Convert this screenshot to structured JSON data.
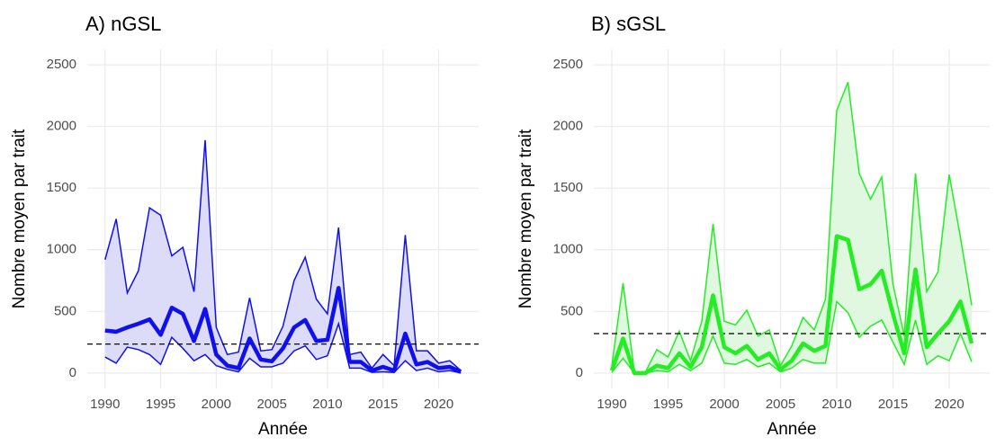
{
  "chart_data": [
    {
      "type": "line",
      "title": "A) nGSL",
      "x_label": "Année",
      "y_label": "Nombre moyen par trait",
      "x": [
        1990,
        1991,
        1992,
        1993,
        1994,
        1995,
        1996,
        1997,
        1998,
        1999,
        2000,
        2001,
        2002,
        2003,
        2004,
        2005,
        2006,
        2007,
        2008,
        2009,
        2010,
        2011,
        2012,
        2013,
        2014,
        2015,
        2016,
        2017,
        2018,
        2019,
        2020,
        2021,
        2022
      ],
      "values": [
        345,
        335,
        370,
        400,
        435,
        310,
        530,
        480,
        260,
        520,
        150,
        60,
        40,
        280,
        110,
        95,
        200,
        370,
        430,
        260,
        270,
        690,
        90,
        90,
        20,
        50,
        20,
        320,
        70,
        90,
        40,
        50,
        10
      ],
      "upper": [
        920,
        1250,
        650,
        830,
        1340,
        1280,
        950,
        1020,
        660,
        1890,
        370,
        150,
        170,
        610,
        180,
        190,
        380,
        750,
        940,
        600,
        480,
        1180,
        150,
        170,
        40,
        150,
        60,
        1120,
        180,
        180,
        80,
        100,
        20
      ],
      "lower": [
        130,
        80,
        210,
        190,
        150,
        70,
        290,
        200,
        100,
        150,
        60,
        30,
        10,
        120,
        50,
        50,
        80,
        180,
        220,
        110,
        140,
        400,
        40,
        40,
        5,
        10,
        5,
        100,
        20,
        40,
        10,
        20,
        0
      ],
      "hline": 235,
      "color": "#1010ee",
      "fill_color": "#dcdcf8",
      "xlim": [
        1988.4,
        2023.6
      ],
      "ylim": [
        -125,
        2625
      ],
      "xticks": [
        1990,
        1995,
        2000,
        2005,
        2010,
        2015,
        2020
      ],
      "yticks": [
        0,
        500,
        1000,
        1500,
        2000,
        2500
      ],
      "grid": true
    },
    {
      "type": "line",
      "title": "B) sGSL",
      "x_label": "Année",
      "y_label": "Nombre moyen par trait",
      "x": [
        1990,
        1991,
        1992,
        1993,
        1994,
        1995,
        1996,
        1997,
        1998,
        1999,
        2000,
        2001,
        2002,
        2003,
        2004,
        2005,
        2006,
        2007,
        2008,
        2009,
        2010,
        2011,
        2012,
        2013,
        2014,
        2015,
        2016,
        2017,
        2018,
        2019,
        2020,
        2021,
        2022
      ],
      "values": [
        20,
        280,
        0,
        0,
        60,
        40,
        160,
        50,
        210,
        630,
        210,
        160,
        220,
        110,
        160,
        30,
        100,
        240,
        180,
        220,
        1110,
        1080,
        680,
        720,
        830,
        480,
        160,
        840,
        210,
        320,
        420,
        580,
        240
      ],
      "upper": [
        60,
        730,
        10,
        10,
        190,
        130,
        340,
        100,
        420,
        1210,
        420,
        390,
        510,
        300,
        350,
        60,
        220,
        450,
        350,
        600,
        2130,
        2360,
        1620,
        1410,
        1590,
        720,
        300,
        1620,
        660,
        820,
        1610,
        1100,
        550
      ],
      "lower": [
        5,
        120,
        0,
        0,
        20,
        10,
        70,
        20,
        80,
        300,
        80,
        70,
        110,
        50,
        80,
        10,
        40,
        110,
        80,
        80,
        580,
        490,
        290,
        380,
        430,
        250,
        70,
        430,
        70,
        140,
        100,
        320,
        90
      ],
      "hline": 320,
      "color": "#22ee22",
      "fill_color": "#e0f8e0",
      "xlim": [
        1988.4,
        2023.6
      ],
      "ylim": [
        -125,
        2625
      ],
      "xticks": [
        1990,
        1995,
        2000,
        2005,
        2010,
        2015,
        2020
      ],
      "yticks": [
        0,
        500,
        1000,
        1500,
        2000,
        2500
      ],
      "grid": true
    }
  ]
}
